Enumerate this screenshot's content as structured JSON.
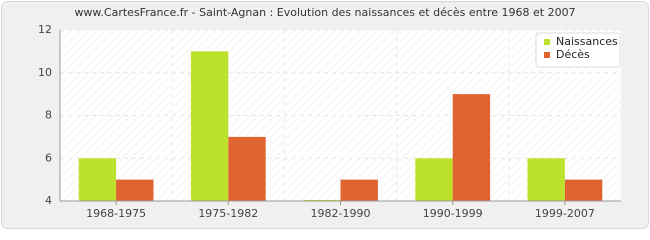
{
  "chart_data": {
    "type": "bar",
    "title": "www.CartesFrance.fr - Saint-Agnan : Evolution des naissances et décès entre 1968 et 2007",
    "categories": [
      "1968-1975",
      "1975-1982",
      "1982-1990",
      "1990-1999",
      "1999-2007"
    ],
    "series": [
      {
        "name": "Naissances",
        "color": "#bde22d",
        "values": [
          6,
          11,
          4,
          6,
          6
        ]
      },
      {
        "name": "Décès",
        "color": "#e0642f",
        "values": [
          5,
          7,
          5,
          9,
          5
        ]
      }
    ],
    "ylim": [
      4,
      12
    ],
    "yticks": [
      4,
      6,
      8,
      10,
      12
    ],
    "grid": true,
    "legend": "top-right"
  }
}
